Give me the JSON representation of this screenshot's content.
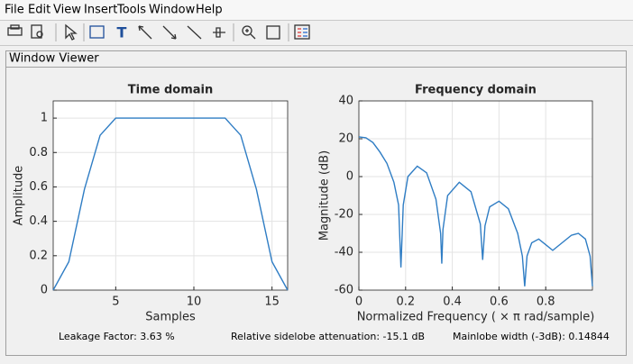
{
  "menu": [
    "File",
    "Edit",
    "View",
    "Insert",
    "Tools",
    "Window",
    "Help"
  ],
  "panel_title": "Window Viewer",
  "chart_data": [
    {
      "type": "line",
      "title": "Time domain",
      "xlabel": "Samples",
      "ylabel": "Amplitude",
      "x": [
        1,
        2,
        3,
        4,
        5,
        6,
        7,
        8,
        9,
        10,
        11,
        12,
        13,
        14,
        15,
        16
      ],
      "values": [
        0,
        0.165,
        0.587,
        0.9,
        1,
        1,
        1,
        1,
        1,
        1,
        1,
        1,
        0.9,
        0.587,
        0.165,
        0
      ],
      "color": "#2f7dc4",
      "xlim": [
        1,
        16
      ],
      "ylim": [
        0,
        1.1
      ],
      "xticks": [
        5,
        10,
        15
      ],
      "yticks": [
        0,
        0.2,
        0.4,
        0.6,
        0.8,
        1
      ],
      "grid": true
    },
    {
      "type": "line",
      "title": "Frequency domain",
      "xlabel": "Normalized Frequency  ( × π rad/sample)",
      "ylabel": "Magnitude (dB)",
      "x": [
        0,
        0.03,
        0.06,
        0.09,
        0.12,
        0.15,
        0.17,
        0.18,
        0.19,
        0.21,
        0.25,
        0.29,
        0.33,
        0.35,
        0.355,
        0.36,
        0.38,
        0.43,
        0.48,
        0.52,
        0.53,
        0.54,
        0.56,
        0.6,
        0.64,
        0.68,
        0.7,
        0.71,
        0.72,
        0.74,
        0.77,
        0.8,
        0.83,
        0.87,
        0.91,
        0.94,
        0.97,
        0.99,
        1.0
      ],
      "values": [
        21,
        20.5,
        18,
        13,
        7,
        -3,
        -15,
        -48,
        -15,
        0,
        5.5,
        2,
        -12,
        -30,
        -46,
        -28,
        -10,
        -3,
        -8,
        -25,
        -44,
        -26,
        -16,
        -13,
        -17,
        -30,
        -42,
        -58,
        -42,
        -35,
        -33,
        -36,
        -39,
        -35,
        -31,
        -30,
        -33,
        -42,
        -58
      ],
      "color": "#2f7dc4",
      "xlim": [
        0,
        1
      ],
      "ylim": [
        -60,
        40
      ],
      "xticks": [
        0,
        0.2,
        0.4,
        0.6,
        0.8
      ],
      "yticks": [
        -60,
        -40,
        -20,
        0,
        20,
        40
      ],
      "grid": true
    }
  ],
  "footer": [
    "Leakage Factor: 3.63 %",
    "Relative sidelobe attenuation: -15.1 dB",
    "Mainlobe width (-3dB): 0.14844"
  ]
}
